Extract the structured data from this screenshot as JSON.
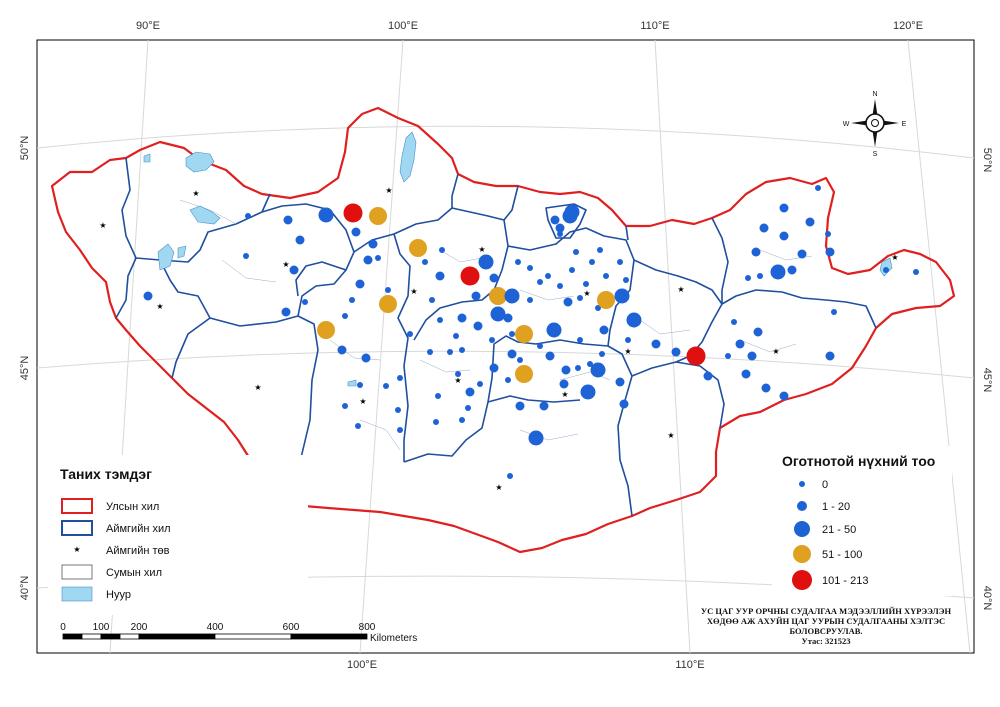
{
  "map": {
    "top_ticks": [
      "90°E",
      "100°E",
      "110°E",
      "120°E"
    ],
    "bottom_ticks": [
      "100°E",
      "110°E"
    ],
    "left_ticks": [
      "50°N",
      "45°N",
      "40°N"
    ],
    "right_ticks": [
      "50°N",
      "45°N",
      "40°N"
    ],
    "compass": {
      "n": "N",
      "s": "S",
      "e": "E",
      "w": "W"
    }
  },
  "legend_left": {
    "title": "Таних тэмдэг",
    "items": [
      {
        "label": "Улсын хил",
        "color": "#e02020"
      },
      {
        "label": "Аймгийн хил",
        "color": "#1f4f9e"
      },
      {
        "label": "Аймгийн төв",
        "color": "#000000"
      },
      {
        "label": "Сумын хил",
        "color": "#555555"
      },
      {
        "label": "Нуур",
        "color": "#9fd8f0"
      }
    ]
  },
  "legend_right": {
    "title": "Оготнотой нүхний тоо",
    "classes": [
      {
        "label": "0",
        "color": "#1e63d6"
      },
      {
        "label": "1 - 20",
        "color": "#1e63d6"
      },
      {
        "label": "21 - 50",
        "color": "#1e63d6"
      },
      {
        "label": "51 - 100",
        "color": "#e0a020"
      },
      {
        "label": "101 - 213",
        "color": "#e01010"
      }
    ]
  },
  "scale_bar": {
    "ticks": [
      "0",
      "100",
      "200",
      "400",
      "600",
      "800"
    ],
    "unit": "Kilometers"
  },
  "credit": {
    "line1": "УС ЦАГ УУР ОРЧНЫ СУДАЛГАА МЭДЭЭЛЛИЙН ХҮРЭЭЛЭН",
    "line2": "ХӨДӨӨ АЖ АХУЙН ЦАГ УУРЫН СУДАЛГААНЫ ХЭЛТЭС",
    "line3": "БОЛОВСРУУЛАВ.",
    "line4": "Утас: 321523"
  },
  "colors": {
    "border": "#e02020",
    "aimag": "#1f4f9e",
    "lake": "#9fd8f0",
    "small": "#1e63d6",
    "medium": "#e0a020",
    "large": "#e01010"
  }
}
